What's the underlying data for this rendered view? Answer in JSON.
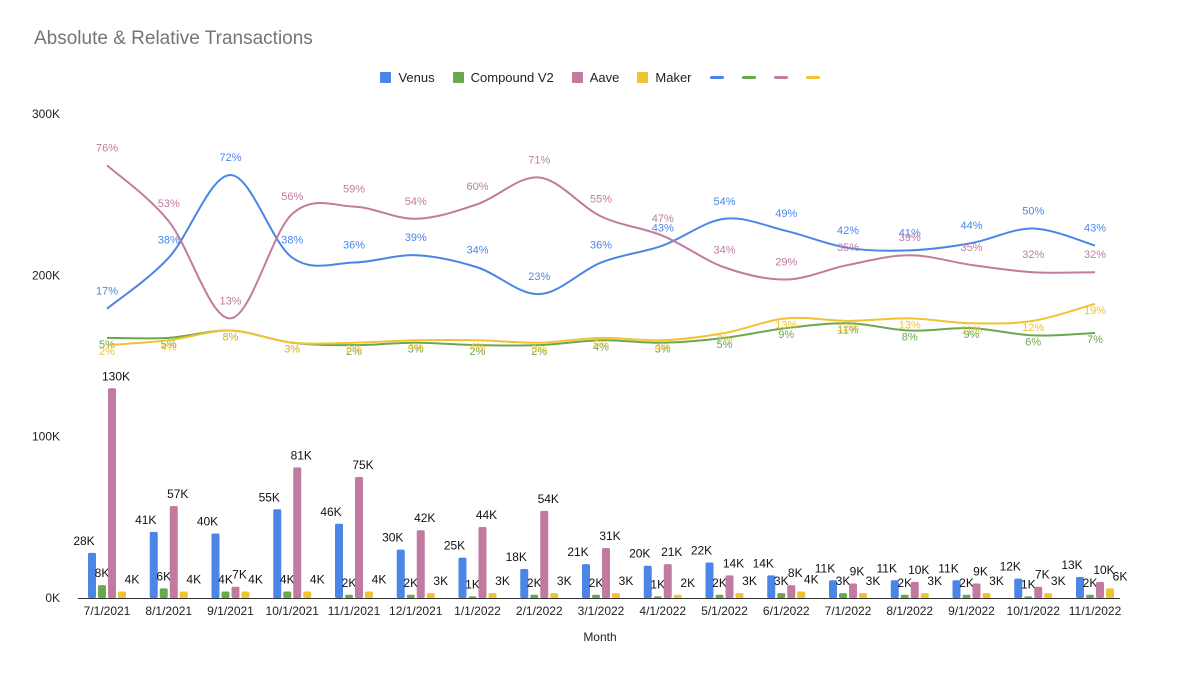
{
  "chart_data": {
    "type": "bar",
    "title": "Absolute & Relative Transactions",
    "xlabel": "Month",
    "ylabel": "",
    "ylim": [
      0,
      300000
    ],
    "yticks": [
      {
        "value": 0,
        "label": "0K"
      },
      {
        "value": 100000,
        "label": "100K"
      },
      {
        "value": 200000,
        "label": "200K"
      },
      {
        "value": 300000,
        "label": "300K"
      }
    ],
    "legend_position": "top",
    "categories": [
      "7/1/2021",
      "8/1/2021",
      "9/1/2021",
      "10/1/2021",
      "11/1/2021",
      "12/1/2021",
      "1/1/2022",
      "2/1/2022",
      "3/1/2022",
      "4/1/2022",
      "5/1/2022",
      "6/1/2022",
      "7/1/2022",
      "8/1/2022",
      "9/1/2022",
      "10/1/2022",
      "11/1/2022"
    ],
    "series": [
      {
        "name": "Venus",
        "color": "#4a86e8",
        "values": [
          28000,
          41000,
          40000,
          55000,
          46000,
          30000,
          25000,
          18000,
          21000,
          20000,
          22000,
          14000,
          11000,
          11000,
          11000,
          12000,
          13000
        ],
        "labels": [
          "28K",
          "41K",
          "40K",
          "55K",
          "46K",
          "30K",
          "25K",
          "18K",
          "21K",
          "20K",
          "22K",
          "14K",
          "11K",
          "11K",
          "11K",
          "12K",
          "13K"
        ]
      },
      {
        "name": "Compound V2",
        "color": "#6aa84f",
        "values": [
          8000,
          6000,
          4000,
          4000,
          2000,
          2000,
          1000,
          2000,
          2000,
          1000,
          2000,
          3000,
          3000,
          2000,
          2000,
          1000,
          2000
        ],
        "labels": [
          "8K",
          "6K",
          "4K",
          "4K",
          "2K",
          "2K",
          "1K",
          "2K",
          "2K",
          "1K",
          "2K",
          "3K",
          "3K",
          "2K",
          "2K",
          "1K",
          "2K"
        ]
      },
      {
        "name": "Aave",
        "color": "#c27ba0",
        "values": [
          130000,
          57000,
          7000,
          81000,
          75000,
          42000,
          44000,
          54000,
          31000,
          21000,
          14000,
          8000,
          9000,
          10000,
          9000,
          7000,
          10000
        ],
        "labels": [
          "130K",
          "57K",
          "7K",
          "81K",
          "75K",
          "42K",
          "44K",
          "54K",
          "31K",
          "21K",
          "14K",
          "8K",
          "9K",
          "10K",
          "9K",
          "7K",
          "10K"
        ]
      },
      {
        "name": "Maker",
        "color": "#f1c232",
        "values": [
          4000,
          4000,
          4000,
          4000,
          4000,
          3000,
          3000,
          3000,
          3000,
          2000,
          3000,
          4000,
          3000,
          3000,
          3000,
          3000,
          6000
        ],
        "labels": [
          "4K",
          "4K",
          "4K",
          "4K",
          "4K",
          "3K",
          "3K",
          "3K",
          "3K",
          "2K",
          "3K",
          "4K",
          "3K",
          "3K",
          "3K",
          "3K",
          "6K"
        ]
      }
    ],
    "share_lines": [
      {
        "name": "Venus",
        "color": "#4a86e8",
        "values": [
          17,
          38,
          72,
          38,
          36,
          39,
          34,
          23,
          36,
          43,
          54,
          49,
          42,
          41,
          44,
          50,
          43
        ],
        "labels": [
          "17%",
          "38%",
          "72%",
          "38%",
          "36%",
          "39%",
          "34%",
          "23%",
          "36%",
          "43%",
          "54%",
          "49%",
          "42%",
          "41%",
          "44%",
          "50%",
          "43%"
        ]
      },
      {
        "name": "Compound V2",
        "color": "#6aa84f",
        "values": [
          5,
          5,
          8,
          3,
          2,
          3,
          2,
          2,
          4,
          3,
          5,
          9,
          11,
          8,
          9,
          6,
          7
        ],
        "labels": [
          "5%",
          "5%",
          "8%",
          "3%",
          "2%",
          "3%",
          "2%",
          "2%",
          "4%",
          "3%",
          "5%",
          "9%",
          "11%",
          "8%",
          "9%",
          "6%",
          "7%"
        ]
      },
      {
        "name": "Aave",
        "color": "#c27ba0",
        "values": [
          76,
          53,
          13,
          56,
          59,
          54,
          60,
          71,
          55,
          47,
          34,
          29,
          35,
          39,
          35,
          32,
          32
        ],
        "labels": [
          "76%",
          "53%",
          "13%",
          "56%",
          "59%",
          "54%",
          "60%",
          "71%",
          "55%",
          "47%",
          "34%",
          "29%",
          "35%",
          "39%",
          "35%",
          "32%",
          "32%"
        ]
      },
      {
        "name": "Maker",
        "color": "#f1c232",
        "values": [
          2,
          4,
          8,
          3,
          3,
          4,
          4,
          3,
          5,
          4,
          7,
          13,
          12,
          13,
          11,
          12,
          19
        ],
        "labels": [
          "2%",
          "4%",
          "8%",
          "3%",
          "3%",
          "4%",
          "4%",
          "3%",
          "5%",
          "4%",
          "7%",
          "13%",
          "12%",
          "13%",
          "11%",
          "12%",
          "19%"
        ]
      }
    ]
  }
}
